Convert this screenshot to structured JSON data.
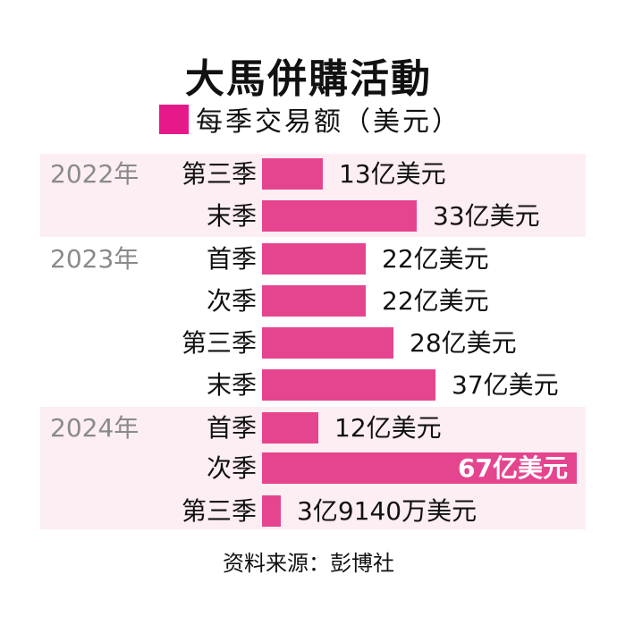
{
  "title": "大馬併購活動",
  "legend": {
    "label": "每季交易额（美元）",
    "color": "#e6198a"
  },
  "source": "资料来源：彭博社",
  "colors": {
    "bar": "#e5458f",
    "band": "#fdeef3",
    "year_text": "#8a8a8a"
  },
  "rows": [
    {
      "year": "2022年",
      "quarter": "第三季",
      "value": 13,
      "label": "13亿美元"
    },
    {
      "year": "",
      "quarter": "末季",
      "value": 33,
      "label": "33亿美元"
    },
    {
      "year": "2023年",
      "quarter": "首季",
      "value": 22,
      "label": "22亿美元"
    },
    {
      "year": "",
      "quarter": "次季",
      "value": 22,
      "label": "22亿美元"
    },
    {
      "year": "",
      "quarter": "第三季",
      "value": 28,
      "label": "28亿美元"
    },
    {
      "year": "",
      "quarter": "末季",
      "value": 37,
      "label": "37亿美元"
    },
    {
      "year": "2024年",
      "quarter": "首季",
      "value": 12,
      "label": "12亿美元"
    },
    {
      "year": "",
      "quarter": "次季",
      "value": 67,
      "label": "67亿美元"
    },
    {
      "year": "",
      "quarter": "第三季",
      "value": 3.914,
      "label": "3亿9140万美元"
    }
  ],
  "chart_data": {
    "type": "bar",
    "orientation": "horizontal",
    "title": "大馬併購活動",
    "legend": [
      "每季交易额（美元）"
    ],
    "categories": [
      "2022年 第三季",
      "2022年 末季",
      "2023年 首季",
      "2023年 次季",
      "2023年 第三季",
      "2023年 末季",
      "2024年 首季",
      "2024年 次季",
      "2024年 第三季"
    ],
    "values": [
      13,
      33,
      22,
      22,
      28,
      37,
      12,
      67,
      3.914
    ],
    "value_labels": [
      "13亿美元",
      "33亿美元",
      "22亿美元",
      "22亿美元",
      "28亿美元",
      "37亿美元",
      "12亿美元",
      "67亿美元",
      "3亿9140万美元"
    ],
    "unit": "亿美元",
    "xlabel": "",
    "ylabel": "",
    "grid": false,
    "legend_position": "top",
    "source": "资料来源：彭博社"
  }
}
